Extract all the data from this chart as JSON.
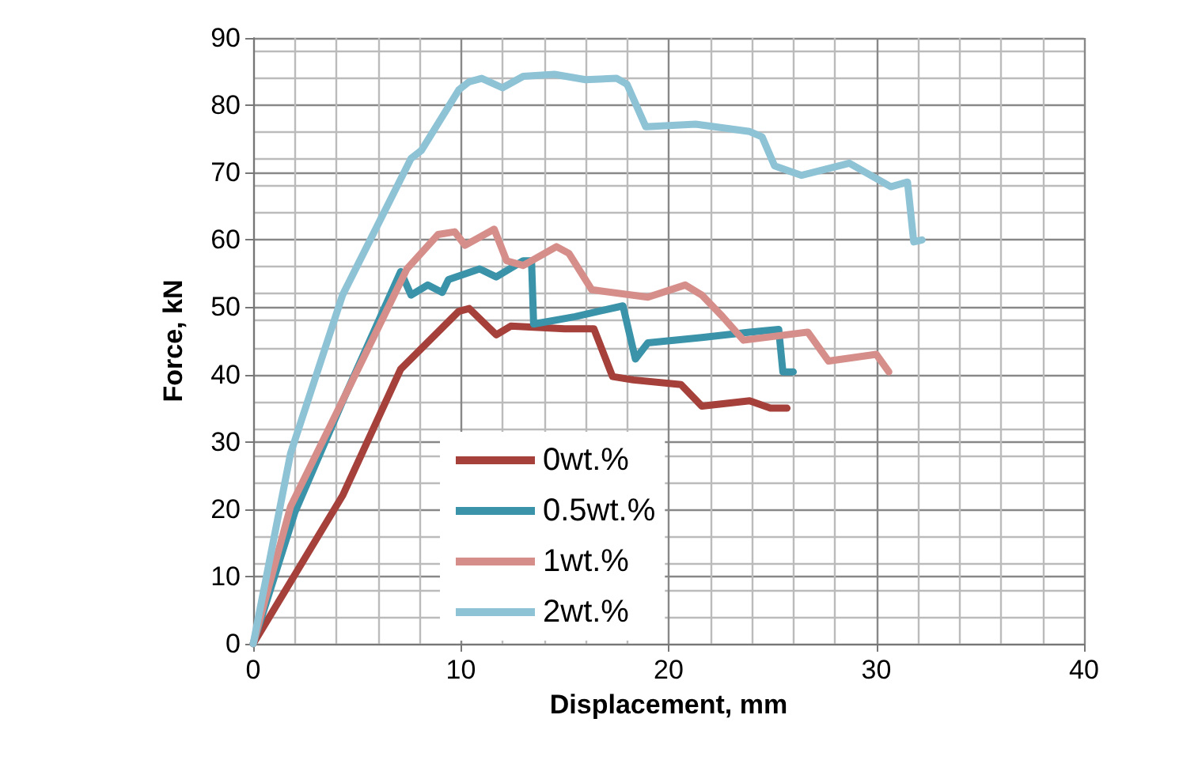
{
  "chart_data": {
    "type": "line",
    "xlabel": "Displacement, mm",
    "ylabel": "Force, kN",
    "xlim": [
      0,
      40
    ],
    "xticks": [
      0,
      10,
      20,
      30,
      40
    ],
    "ylim": [
      0,
      90
    ],
    "yticks": [
      0,
      10,
      20,
      30,
      40,
      50,
      60,
      70,
      80,
      90
    ],
    "grid": true,
    "legend": "bottom left",
    "marker": "none",
    "line_style": "solid",
    "series": [
      {
        "name": "0wt.%",
        "color": "#a5403b",
        "x": [
          0,
          4.3,
          7.1,
          9.9,
          10.4,
          11.7,
          12.4,
          15.0,
          16.4,
          17.3,
          18.3,
          20.6,
          21.6,
          23.9,
          24.9,
          25.7
        ],
        "values": [
          0,
          22.0,
          40.8,
          49.4,
          49.8,
          45.9,
          47.2,
          46.8,
          46.8,
          39.7,
          39.2,
          38.5,
          35.3,
          36.1,
          35.0,
          35.0
        ]
      },
      {
        "name": "0.5wt.%",
        "color": "#3a93a8",
        "x": [
          0,
          2.0,
          4.3,
          7.1,
          7.6,
          8.4,
          9.1,
          9.4,
          10.9,
          11.7,
          13.0,
          13.4,
          13.5,
          15.5,
          17.8,
          18.4,
          19.0,
          21.6,
          23.9,
          25.3,
          25.5,
          26.0
        ],
        "values": [
          0,
          19.5,
          36.0,
          55.3,
          51.8,
          53.3,
          52.2,
          54.1,
          55.7,
          54.5,
          56.9,
          56.9,
          47.5,
          48.6,
          50.2,
          42.3,
          44.7,
          45.5,
          46.3,
          46.7,
          40.4,
          40.4
        ]
      },
      {
        "name": "1wt.%",
        "color": "#d68e8a",
        "x": [
          0,
          1.8,
          4.3,
          7.4,
          8.9,
          9.7,
          10.2,
          11.6,
          12.2,
          13.0,
          14.6,
          15.2,
          16.3,
          19.0,
          20.8,
          21.6,
          22.6,
          23.6,
          24.9,
          26.7,
          27.7,
          30.0,
          30.6
        ],
        "values": [
          0,
          20.4,
          36.1,
          55.7,
          60.8,
          61.2,
          59.2,
          61.6,
          56.9,
          56.2,
          59.0,
          58.0,
          52.6,
          51.5,
          53.3,
          51.8,
          48.6,
          45.1,
          45.6,
          46.3,
          42.0,
          43.0,
          40.4
        ]
      },
      {
        "name": "2wt.%",
        "color": "#8ec3d6",
        "x": [
          0,
          1.8,
          4.3,
          7.6,
          8.1,
          9.9,
          10.4,
          11.0,
          12.0,
          13.0,
          14.5,
          16.0,
          17.5,
          18.0,
          18.9,
          21.3,
          23.9,
          24.5,
          25.1,
          26.4,
          28.7,
          30.7,
          31.5,
          31.8,
          32.2
        ],
        "values": [
          0,
          28.3,
          51.8,
          72.1,
          73.3,
          82.3,
          83.5,
          84.0,
          82.6,
          84.3,
          84.6,
          83.8,
          84.0,
          83.1,
          76.8,
          77.2,
          76.1,
          75.3,
          71.0,
          69.6,
          71.4,
          67.9,
          68.6,
          59.7,
          60.0
        ]
      }
    ]
  }
}
